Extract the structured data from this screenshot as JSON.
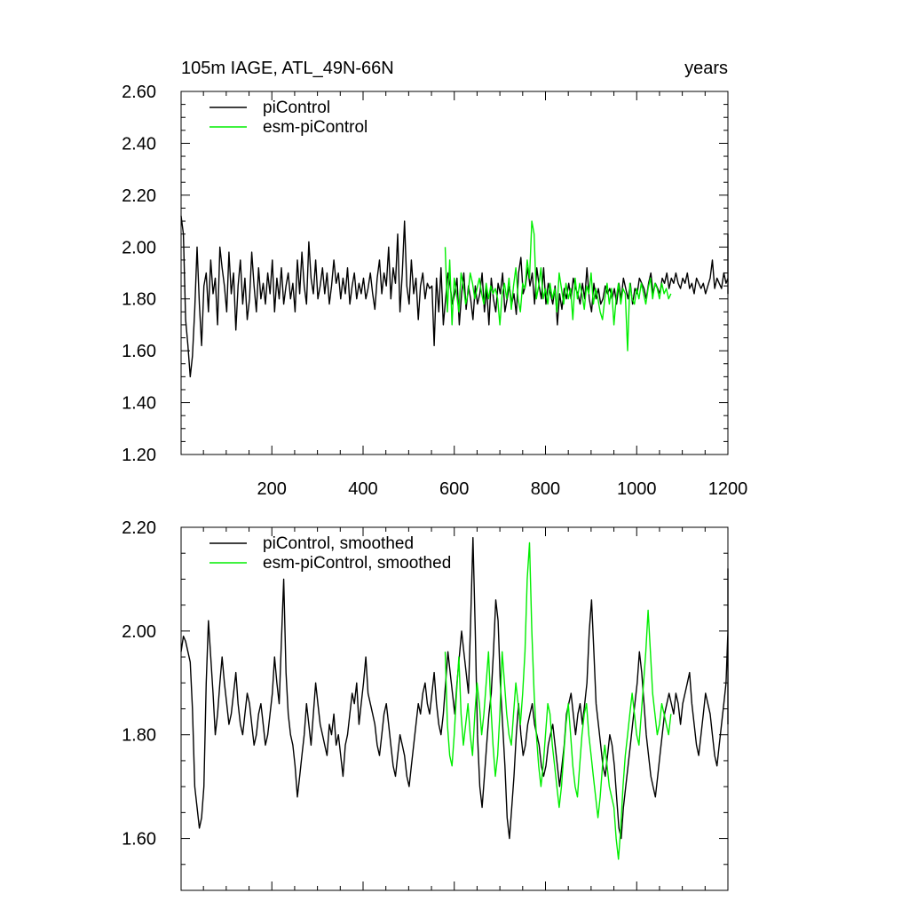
{
  "figure": {
    "title_left": "105m IAGE, ATL_49N-66N",
    "title_right": "years"
  },
  "chart_data": [
    {
      "type": "line",
      "title": "105m IAGE, ATL_49N-66N",
      "title_right": "years",
      "xlim": [
        1,
        1200
      ],
      "ylim": [
        1.2,
        2.6
      ],
      "xticks": [
        200,
        400,
        600,
        800,
        1000,
        1200
      ],
      "xtick_labels": [
        "200",
        "400",
        "600",
        "800",
        "1000",
        "1200"
      ],
      "yticks": [
        1.2,
        1.4,
        1.6,
        1.8,
        2.0,
        2.2,
        2.4,
        2.6
      ],
      "ytick_labels": [
        "1.20",
        "1.40",
        "1.60",
        "1.80",
        "2.00",
        "2.20",
        "2.40",
        "2.60"
      ],
      "legend_position": "top-left",
      "series": [
        {
          "name": "piControl",
          "color": "#000000",
          "x_range": [
            1,
            1200
          ],
          "x_step": 5,
          "values": [
            2.12,
            2.05,
            1.72,
            1.62,
            1.5,
            1.58,
            1.76,
            2.0,
            1.78,
            1.62,
            1.85,
            1.9,
            1.75,
            1.95,
            1.82,
            1.88,
            1.7,
            2.0,
            1.92,
            1.85,
            1.75,
            1.98,
            1.82,
            1.9,
            1.68,
            1.85,
            1.95,
            1.78,
            1.88,
            1.72,
            1.8,
            1.98,
            1.85,
            1.75,
            1.92,
            1.8,
            1.86,
            1.78,
            1.9,
            1.82,
            1.95,
            1.75,
            1.88,
            1.8,
            1.92,
            1.78,
            1.85,
            1.9,
            1.8,
            1.86,
            1.75,
            1.95,
            1.82,
            1.98,
            1.85,
            1.78,
            2.02,
            1.88,
            1.82,
            1.95,
            1.8,
            1.85,
            1.92,
            1.82,
            1.9,
            1.78,
            1.85,
            1.95,
            1.86,
            1.9,
            1.8,
            1.88,
            1.82,
            1.92,
            1.78,
            1.85,
            1.9,
            1.8,
            1.86,
            1.82,
            1.88,
            1.8,
            1.84,
            1.9,
            1.82,
            1.76,
            1.88,
            1.95,
            1.82,
            1.9,
            1.85,
            2.0,
            1.8,
            1.92,
            1.86,
            2.05,
            1.75,
            1.9,
            2.1,
            1.85,
            1.78,
            1.95,
            1.82,
            1.88,
            1.72,
            1.85,
            1.9,
            1.8,
            1.86,
            1.84,
            1.85,
            1.62,
            1.88,
            1.75,
            1.92,
            1.7,
            1.8,
            1.9,
            1.85,
            1.78,
            1.82,
            1.88,
            1.7,
            1.82,
            1.9,
            1.76,
            1.85,
            1.8,
            1.72,
            1.85,
            1.78,
            1.82,
            1.9,
            1.75,
            1.84,
            1.7,
            1.88,
            1.8,
            1.75,
            1.86,
            1.82,
            1.9,
            1.75,
            1.8,
            1.85,
            1.78,
            1.82,
            1.74,
            1.9,
            1.96,
            1.82,
            1.85,
            1.92,
            1.85,
            1.9,
            1.78,
            1.92,
            1.85,
            1.8,
            1.92,
            1.78,
            1.86,
            1.82,
            1.78,
            1.85,
            1.7,
            1.82,
            1.76,
            1.84,
            1.8,
            1.86,
            1.8,
            1.88,
            1.84,
            1.82,
            1.78,
            1.86,
            1.8,
            1.92,
            1.8,
            1.75,
            1.86,
            1.8,
            1.84,
            1.78,
            1.8,
            1.85,
            1.82,
            1.84,
            1.8,
            1.84,
            1.78,
            1.86,
            1.8,
            1.88,
            1.84,
            1.8,
            1.86,
            1.78,
            1.84,
            1.82,
            1.88,
            1.86,
            1.84,
            1.8,
            1.86,
            1.9,
            1.82,
            1.86,
            1.84,
            1.82,
            1.88,
            1.86,
            1.9,
            1.84,
            1.88,
            1.86,
            1.9,
            1.86,
            1.84,
            1.88,
            1.86,
            1.9,
            1.84,
            1.86,
            1.82,
            1.88,
            1.86,
            1.84,
            1.86,
            1.82,
            1.85,
            1.88,
            1.95,
            1.84,
            1.88,
            1.86,
            1.84,
            1.9,
            1.86,
            1.88,
            1.84,
            1.9,
            2.05,
            1.86,
            1.88,
            1.84,
            1.82,
            1.88,
            1.86,
            1.9,
            1.84,
            1.86
          ]
        },
        {
          "name": "esm-piControl",
          "color": "#00ee00",
          "x_range": [
            580,
            1080
          ],
          "x_step": 5,
          "values": [
            2.0,
            1.75,
            1.95,
            1.7,
            1.88,
            1.82,
            1.75,
            1.9,
            1.85,
            1.78,
            1.82,
            1.9,
            1.86,
            1.8,
            1.84,
            1.88,
            1.82,
            1.78,
            1.86,
            1.8,
            1.85,
            1.82,
            1.84,
            1.8,
            1.7,
            1.82,
            1.86,
            1.8,
            1.88,
            1.76,
            1.85,
            1.92,
            1.8,
            1.75,
            1.86,
            1.84,
            1.95,
            1.88,
            2.1,
            2.05,
            1.8,
            1.85,
            1.92,
            1.8,
            1.84,
            1.78,
            1.86,
            1.8,
            1.84,
            1.75,
            1.9,
            1.84,
            1.78,
            1.86,
            1.8,
            1.84,
            1.72,
            1.88,
            1.8,
            1.86,
            1.82,
            1.76,
            1.85,
            1.82,
            1.9,
            1.78,
            1.84,
            1.8,
            1.75,
            1.72,
            1.8,
            1.86,
            1.78,
            1.84,
            1.7,
            1.8,
            1.86,
            1.78,
            1.84,
            1.82,
            1.6,
            1.86,
            1.8,
            1.78,
            1.84,
            1.8,
            1.86,
            1.82,
            1.78,
            1.84,
            1.88,
            1.8,
            1.86,
            1.84,
            1.8,
            1.86,
            1.82,
            1.84,
            1.8,
            1.82
          ]
        }
      ]
    },
    {
      "type": "line",
      "title": "",
      "xlim": [
        1,
        1200
      ],
      "ylim": [
        1.5,
        2.2
      ],
      "yticks": [
        1.6,
        1.8,
        2.0,
        2.2
      ],
      "ytick_labels": [
        "1.60",
        "1.80",
        "2.00",
        "2.20"
      ],
      "legend_position": "top-left",
      "series": [
        {
          "name": "piControl, smoothed",
          "color": "#000000",
          "x_range": [
            1,
            1200
          ],
          "x_step": 5,
          "values": [
            1.96,
            1.99,
            1.98,
            1.96,
            1.94,
            1.85,
            1.7,
            1.66,
            1.62,
            1.64,
            1.7,
            1.9,
            2.02,
            1.95,
            1.88,
            1.8,
            1.84,
            1.9,
            1.95,
            1.9,
            1.86,
            1.82,
            1.84,
            1.88,
            1.92,
            1.86,
            1.82,
            1.8,
            1.84,
            1.88,
            1.86,
            1.82,
            1.78,
            1.8,
            1.84,
            1.86,
            1.82,
            1.78,
            1.8,
            1.84,
            1.88,
            1.95,
            1.9,
            1.86,
            1.98,
            2.1,
            1.92,
            1.84,
            1.8,
            1.78,
            1.74,
            1.68,
            1.72,
            1.76,
            1.8,
            1.86,
            1.82,
            1.78,
            1.84,
            1.9,
            1.86,
            1.82,
            1.8,
            1.78,
            1.76,
            1.82,
            1.8,
            1.84,
            1.78,
            1.8,
            1.76,
            1.72,
            1.78,
            1.8,
            1.84,
            1.88,
            1.86,
            1.9,
            1.82,
            1.86,
            1.9,
            1.95,
            1.88,
            1.86,
            1.84,
            1.82,
            1.78,
            1.76,
            1.8,
            1.84,
            1.86,
            1.82,
            1.78,
            1.74,
            1.72,
            1.76,
            1.8,
            1.78,
            1.76,
            1.72,
            1.7,
            1.74,
            1.78,
            1.82,
            1.86,
            1.84,
            1.88,
            1.9,
            1.86,
            1.84,
            1.88,
            1.92,
            1.86,
            1.82,
            1.8,
            1.84,
            1.9,
            1.96,
            1.92,
            1.88,
            1.84,
            1.9,
            1.95,
            2.0,
            1.96,
            1.92,
            1.88,
            2.02,
            2.18,
            2.0,
            1.8,
            1.7,
            1.66,
            1.72,
            1.78,
            1.84,
            1.88,
            1.96,
            2.06,
            2.02,
            1.9,
            1.82,
            1.74,
            1.64,
            1.6,
            1.66,
            1.72,
            1.8,
            1.86,
            1.8,
            1.76,
            1.78,
            1.82,
            1.84,
            1.86,
            1.82,
            1.8,
            1.78,
            1.74,
            1.72,
            1.74,
            1.78,
            1.8,
            1.82,
            1.78,
            1.74,
            1.7,
            1.74,
            1.78,
            1.84,
            1.86,
            1.88,
            1.84,
            1.8,
            1.84,
            1.86,
            1.82,
            1.86,
            1.9,
            2.0,
            2.06,
            1.96,
            1.86,
            1.82,
            1.78,
            1.74,
            1.72,
            1.76,
            1.8,
            1.78,
            1.74,
            1.68,
            1.62,
            1.6,
            1.66,
            1.7,
            1.74,
            1.78,
            1.82,
            1.86,
            1.9,
            1.96,
            1.92,
            1.86,
            1.8,
            1.76,
            1.72,
            1.7,
            1.68,
            1.72,
            1.76,
            1.8,
            1.84,
            1.86,
            1.88,
            1.86,
            1.84,
            1.88,
            1.86,
            1.82,
            1.86,
            1.88,
            1.9,
            1.92,
            1.86,
            1.82,
            1.78,
            1.76,
            1.8,
            1.84,
            1.88,
            1.86,
            1.84,
            1.8,
            1.76,
            1.74,
            1.78,
            1.82,
            1.86,
            1.9,
            2.0,
            2.12,
            1.96,
            1.86,
            1.82
          ]
        },
        {
          "name": "esm-piControl, smoothed",
          "color": "#00ee00",
          "x_range": [
            580,
            1080
          ],
          "x_step": 5,
          "values": [
            1.96,
            1.82,
            1.76,
            1.74,
            1.8,
            1.88,
            1.95,
            1.84,
            1.78,
            1.82,
            1.86,
            1.8,
            1.76,
            1.84,
            1.9,
            1.86,
            1.8,
            1.84,
            1.9,
            1.96,
            1.86,
            1.78,
            1.72,
            1.76,
            1.84,
            1.96,
            1.9,
            1.84,
            1.8,
            1.78,
            1.84,
            1.9,
            1.86,
            1.82,
            1.88,
            1.96,
            2.1,
            2.17,
            2.0,
            1.88,
            1.8,
            1.74,
            1.7,
            1.74,
            1.8,
            1.86,
            1.84,
            1.78,
            1.74,
            1.7,
            1.66,
            1.7,
            1.76,
            1.82,
            1.86,
            1.8,
            1.74,
            1.7,
            1.68,
            1.74,
            1.8,
            1.84,
            1.86,
            1.8,
            1.76,
            1.72,
            1.68,
            1.64,
            1.68,
            1.74,
            1.78,
            1.74,
            1.7,
            1.68,
            1.66,
            1.6,
            1.56,
            1.62,
            1.7,
            1.76,
            1.8,
            1.84,
            1.88,
            1.84,
            1.8,
            1.78,
            1.84,
            1.9,
            1.96,
            2.04,
            1.96,
            1.88,
            1.84,
            1.8,
            1.82,
            1.86,
            1.84,
            1.82,
            1.8,
            1.84
          ]
        }
      ]
    }
  ]
}
